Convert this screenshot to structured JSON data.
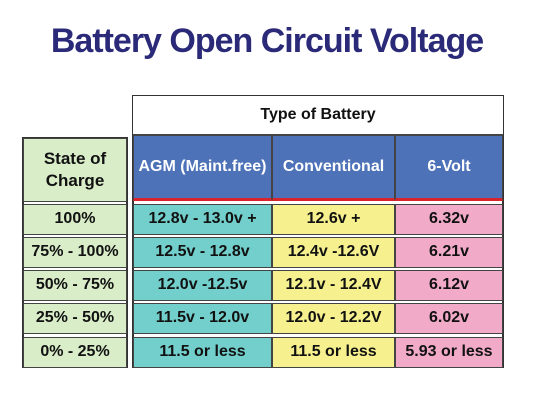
{
  "title": "Battery Open Circuit Voltage",
  "table": {
    "group_header": "Type of Battery",
    "row_header": "State of Charge",
    "columns": [
      "AGM (Maint.free)",
      "Conventional",
      "6-Volt"
    ],
    "rows": [
      {
        "label": "100%",
        "cells": [
          "12.8v - 13.0v +",
          "12.6v +",
          "6.32v"
        ]
      },
      {
        "label": "75% - 100%",
        "cells": [
          "12.5v - 12.8v",
          "12.4v -12.6V",
          "6.21v"
        ]
      },
      {
        "label": "50% - 75%",
        "cells": [
          "12.0v -12.5v",
          "12.1v - 12.4V",
          "6.12v"
        ]
      },
      {
        "label": "25% - 50%",
        "cells": [
          "11.5v - 12.0v",
          "12.0v - 12.2V",
          "6.02v"
        ]
      },
      {
        "label": "0% - 25%",
        "cells": [
          "11.5 or less",
          "11.5 or less",
          "5.93 or less"
        ]
      }
    ]
  }
}
